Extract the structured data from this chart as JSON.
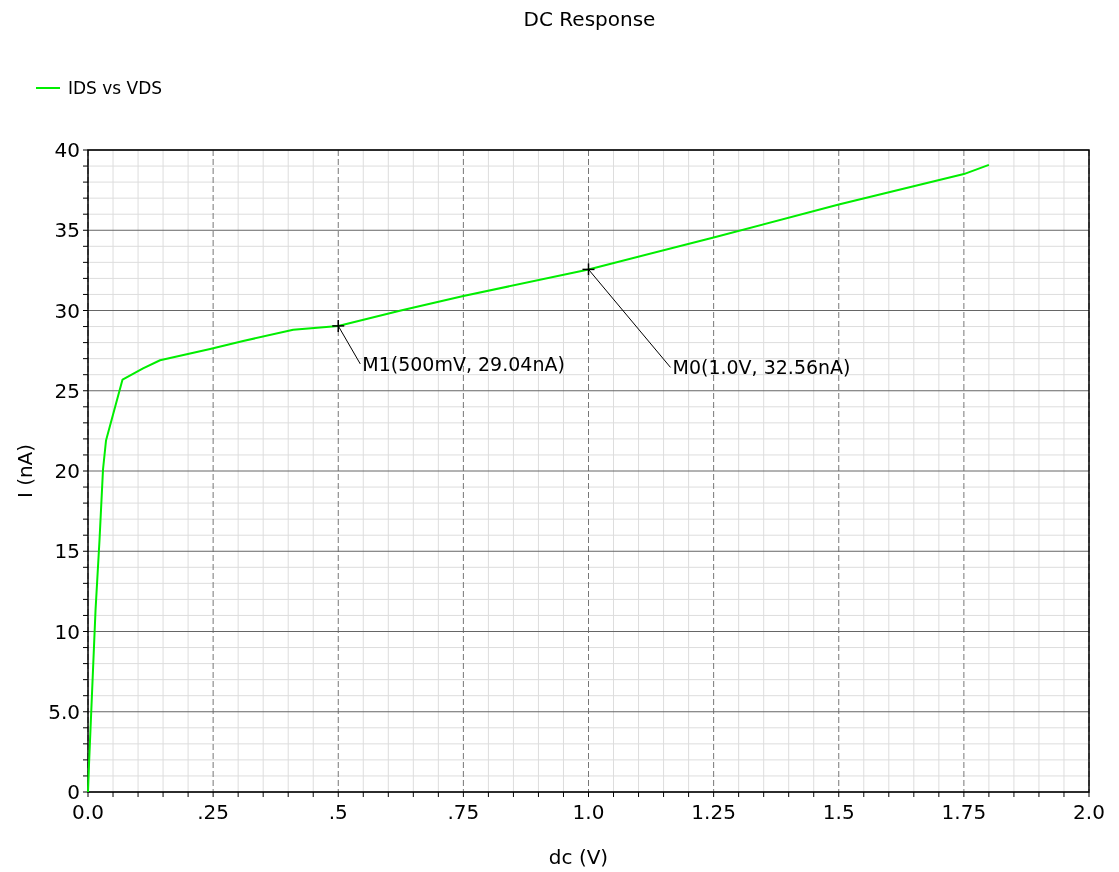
{
  "chart_data": {
    "type": "line",
    "title": "DC Response",
    "xlabel": "dc (V)",
    "ylabel": "I (nA)",
    "x": [
      0,
      0.002,
      0.015,
      0.023,
      0.03,
      0.036,
      0.069,
      0.11,
      0.144,
      0.244,
      0.31,
      0.41,
      0.5,
      0.625,
      0.75,
      1.0,
      1.25,
      1.5,
      1.75,
      1.8
    ],
    "series": [
      {
        "name": "IDS vs VDS",
        "color": "#00ee00",
        "values": [
          0,
          1.7,
          11.3,
          15.7,
          20.1,
          21.9,
          25.7,
          26.4,
          26.9,
          27.6,
          28.1,
          28.8,
          29.04,
          30.0,
          30.9,
          32.56,
          34.55,
          36.6,
          38.5,
          39.07
        ]
      }
    ],
    "xlim": [
      0,
      2
    ],
    "ylim": [
      0,
      40
    ],
    "xticks": [
      {
        "value": 0,
        "label": "0.0"
      },
      {
        "value": 0.25,
        "label": ".25"
      },
      {
        "value": 0.5,
        "label": ".5"
      },
      {
        "value": 0.75,
        "label": ".75"
      },
      {
        "value": 1,
        "label": "1.0"
      },
      1.25,
      1.5,
      1.75,
      {
        "value": 2,
        "label": "2.0"
      }
    ],
    "yticks": [
      0,
      {
        "value": 5,
        "label": "5.0"
      },
      10,
      15,
      20,
      25,
      30,
      35,
      40
    ],
    "grid": true,
    "legend": "top left",
    "annotations": [
      {
        "text": "M1(500mV, 29.04nA)",
        "x": 0.5,
        "y": 29.04
      },
      {
        "text": "M0(1.0V, 32.56nA)",
        "x": 1.0,
        "y": 32.56
      }
    ]
  }
}
